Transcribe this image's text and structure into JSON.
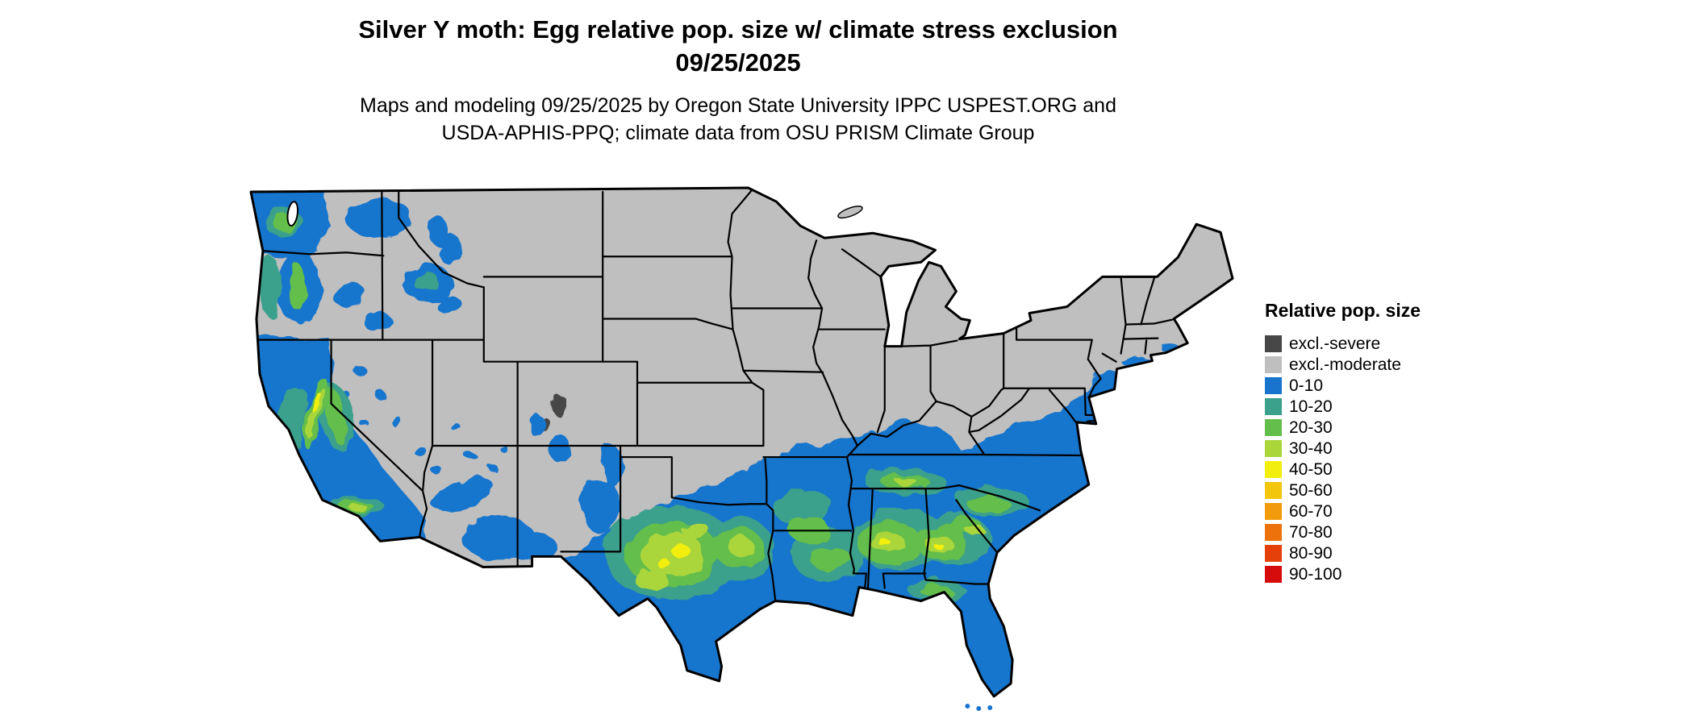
{
  "title": {
    "line1": "Silver Y moth: Egg relative pop. size w/ climate stress exclusion",
    "line2": "09/25/2025"
  },
  "subtitle": {
    "line1": "Maps and modeling 09/25/2025 by Oregon State University IPPC USPEST.ORG and",
    "line2": "USDA-APHIS-PPQ; climate data from OSU PRISM Climate Group"
  },
  "legend": {
    "title": "Relative pop. size",
    "entries": [
      {
        "label": "excl.-severe",
        "color": "#474747"
      },
      {
        "label": "excl.-moderate",
        "color": "#BFBFBF"
      },
      {
        "label": "0-10",
        "color": "#1874CD"
      },
      {
        "label": "10-20",
        "color": "#3BA08C"
      },
      {
        "label": "20-30",
        "color": "#64BE4B"
      },
      {
        "label": "30-40",
        "color": "#ABD63A"
      },
      {
        "label": "40-50",
        "color": "#F2EE0D"
      },
      {
        "label": "50-60",
        "color": "#F2C60D"
      },
      {
        "label": "60-70",
        "color": "#F29B0D"
      },
      {
        "label": "70-80",
        "color": "#ED720B"
      },
      {
        "label": "80-90",
        "color": "#E6400A"
      },
      {
        "label": "90-100",
        "color": "#D60C0C"
      }
    ]
  }
}
